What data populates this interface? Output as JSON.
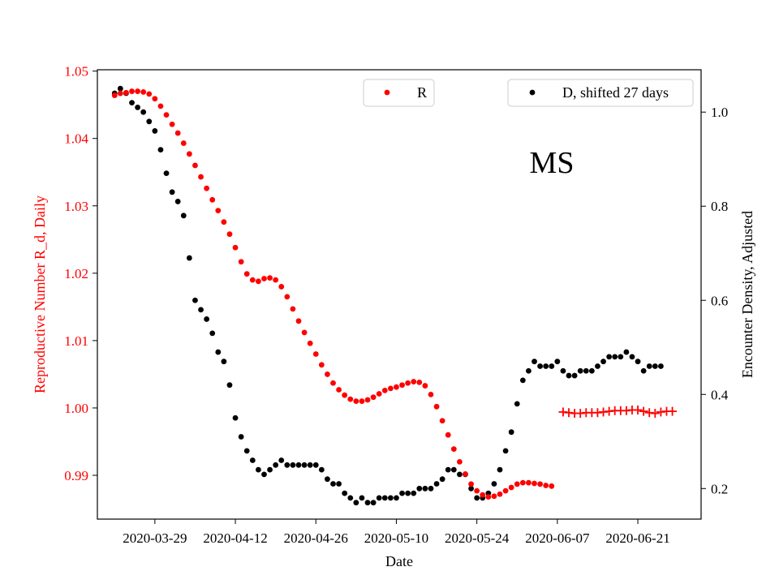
{
  "chart_data": {
    "type": "scatter",
    "annotation": "MS",
    "xlabel": "Date",
    "ylabel_left": "Reproductive Number R_d, Daily",
    "ylabel_right": "Encounter Density, Adjusted",
    "x_start": "2020-03-22",
    "x_end": "2020-06-30",
    "xlim": [
      "2020-03-19",
      "2020-07-02"
    ],
    "ylim_left": [
      0.9835,
      1.0502
    ],
    "ylim_right": [
      0.135,
      1.09
    ],
    "x_ticks": [
      "2020-03-29",
      "2020-04-12",
      "2020-04-26",
      "2020-05-10",
      "2020-05-24",
      "2020-06-07",
      "2020-06-21"
    ],
    "y_ticks_left": [
      0.99,
      1.0,
      1.01,
      1.02,
      1.03,
      1.04,
      1.05
    ],
    "y_tick_labels_left": [
      "0.99",
      "1.00",
      "1.01",
      "1.02",
      "1.03",
      "1.04",
      "1.05"
    ],
    "y_ticks_right": [
      0.2,
      0.4,
      0.6,
      0.8,
      1.0
    ],
    "y_tick_labels_right": [
      "0.2",
      "0.4",
      "0.6",
      "0.8",
      "1.0"
    ],
    "legend": {
      "r_label": "R",
      "d_label": "D, shifted 27 days",
      "placement": "top"
    },
    "series": [
      {
        "name": "R",
        "axis": "left",
        "color": "#ff0000",
        "marker": "circle",
        "x_start": "2020-03-22",
        "values": [
          1.0464,
          1.0467,
          1.0468,
          1.047,
          1.047,
          1.0469,
          1.0466,
          1.0459,
          1.0448,
          1.0435,
          1.0421,
          1.0408,
          1.0393,
          1.0377,
          1.036,
          1.0343,
          1.0326,
          1.0309,
          1.0293,
          1.0276,
          1.0258,
          1.0238,
          1.0217,
          1.0199,
          1.019,
          1.0188,
          1.0192,
          1.0193,
          1.019,
          1.018,
          1.0165,
          1.0147,
          1.0129,
          1.0112,
          1.0096,
          1.008,
          1.0064,
          1.005,
          1.0037,
          1.0027,
          1.0019,
          1.0013,
          1.001,
          1.001,
          1.0012,
          1.0016,
          1.0021,
          1.0026,
          1.0029,
          1.0031,
          1.0034,
          1.0037,
          1.0039,
          1.0038,
          1.0033,
          1.002,
          1.0002,
          0.9981,
          0.996,
          0.9939,
          0.992,
          0.9902,
          0.9887,
          0.9877,
          0.9871,
          0.9868,
          0.9869,
          0.9872,
          0.9877,
          0.9882,
          0.9887,
          0.9889,
          0.9889,
          0.9888,
          0.9887,
          0.9885,
          0.9884
        ]
      },
      {
        "name": "R",
        "axis": "left",
        "color": "#ff0000",
        "marker": "plus",
        "x_start": "2020-06-08",
        "values": [
          0.9994,
          0.9993,
          0.9992,
          0.9992,
          0.9993,
          0.9993,
          0.9993,
          0.9994,
          0.9995,
          0.9996,
          0.9996,
          0.9996,
          0.9997,
          0.9997,
          0.9995,
          0.9993,
          0.9992,
          0.9994,
          0.9995,
          0.9995
        ]
      },
      {
        "name": "D, shifted 27 days",
        "axis": "right",
        "color": "#000000",
        "marker": "circle",
        "x_start": "2020-03-22",
        "values": [
          1.04,
          1.05,
          1.04,
          1.02,
          1.01,
          1.0,
          0.98,
          0.96,
          0.92,
          0.87,
          0.83,
          0.81,
          0.78,
          0.69,
          0.6,
          0.58,
          0.56,
          0.53,
          0.49,
          0.47,
          0.42,
          0.35,
          0.31,
          0.28,
          0.26,
          0.24,
          0.23,
          0.24,
          0.25,
          0.26,
          0.25,
          0.25,
          0.25,
          0.25,
          0.25,
          0.25,
          0.24,
          0.22,
          0.21,
          0.21,
          0.19,
          0.18,
          0.17,
          0.18,
          0.17,
          0.17,
          0.18,
          0.18,
          0.18,
          0.18,
          0.19,
          0.19,
          0.19,
          0.2,
          0.2,
          0.2,
          0.21,
          0.22,
          0.24,
          0.24,
          0.23,
          0.23,
          0.2,
          0.18,
          0.18,
          0.19,
          0.21,
          0.24,
          0.28,
          0.32,
          0.38,
          0.43,
          0.45,
          0.47,
          0.46,
          0.46,
          0.46,
          0.47,
          0.45,
          0.44,
          0.44,
          0.45,
          0.45,
          0.45,
          0.46,
          0.47,
          0.48,
          0.48,
          0.48,
          0.49,
          0.48,
          0.47,
          0.45,
          0.46,
          0.46,
          0.46
        ]
      }
    ]
  }
}
